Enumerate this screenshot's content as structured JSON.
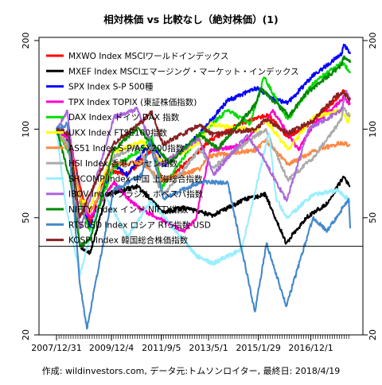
{
  "chart_data": {
    "type": "line",
    "title": "相対株価 vs 比較なし（絶対株価）(1)",
    "footer": "作成: wildinvestors.com, データ元:トムソンロイター, 最終日: 2018/4/19",
    "y_scale": "log",
    "ylim": [
      20,
      205
    ],
    "y_ticks": [
      20,
      50,
      100,
      200
    ],
    "y_tick_labels": [
      "20",
      "50",
      "100",
      "200"
    ],
    "x_range": [
      "2007-12-31",
      "2018-04-19"
    ],
    "x_ticks": [
      "2007-12-31",
      "2009-12-04",
      "2011-09-05",
      "2013-05-01",
      "2015-01-29",
      "2016-12-01"
    ],
    "x_tick_labels": [
      "2007/12/31",
      "2009/12/4",
      "2011/9/5",
      "2013/5/1",
      "2015/1/29",
      "2016/12/1"
    ],
    "reference_line": 40,
    "grid": false,
    "legend_position": "top-left",
    "series": [
      {
        "name": "MXWO Index MSCIワールドインデックス",
        "color": "#ff0000",
        "x": [
          "2007-12-31",
          "2008-06-30",
          "2008-10-31",
          "2009-03-09",
          "2009-09-30",
          "2010-06-30",
          "2011-04-30",
          "2011-10-04",
          "2012-06-30",
          "2013-05-31",
          "2014-06-30",
          "2015-05-31",
          "2016-02-11",
          "2016-11-30",
          "2017-06-30",
          "2018-01-26",
          "2018-04-19"
        ],
        "y": [
          100,
          89,
          63,
          48,
          72,
          70,
          85,
          66,
          76,
          92,
          105,
          112,
          94,
          105,
          118,
          135,
          126
        ]
      },
      {
        "name": "MXEF Index MSCIエマージング・マーケット・インデックス",
        "color": "#000000",
        "x": [
          "2007-12-31",
          "2008-05-31",
          "2008-10-27",
          "2009-03-09",
          "2009-09-30",
          "2010-04-30",
          "2010-10-31",
          "2011-10-04",
          "2012-05-31",
          "2013-06-24",
          "2014-08-31",
          "2015-04-30",
          "2016-01-21",
          "2016-09-30",
          "2017-06-30",
          "2018-01-26",
          "2018-04-19"
        ],
        "y": [
          100,
          95,
          40,
          38,
          60,
          62,
          64,
          52,
          54,
          51,
          58,
          60,
          41,
          50,
          56,
          69,
          64
        ]
      },
      {
        "name": "SPX Index S-P 500種",
        "color": "#0000ff",
        "x": [
          "2007-12-31",
          "2008-06-30",
          "2008-11-20",
          "2009-03-09",
          "2009-12-31",
          "2010-07-02",
          "2011-04-30",
          "2011-10-03",
          "2012-12-31",
          "2013-12-31",
          "2014-12-31",
          "2015-08-25",
          "2016-02-11",
          "2016-12-31",
          "2017-12-31",
          "2018-01-26",
          "2018-04-19"
        ],
        "y": [
          100,
          87,
          55,
          46,
          75,
          70,
          92,
          75,
          96,
          125,
          138,
          126,
          123,
          152,
          180,
          194,
          180
        ]
      },
      {
        "name": "TPX Index TOPIX (東証株価指数)",
        "color": "#ff00cc",
        "x": [
          "2007-12-31",
          "2008-06-30",
          "2008-10-28",
          "2009-03-10",
          "2009-12-31",
          "2010-08-31",
          "2011-03-15",
          "2012-06-04",
          "2012-11-14",
          "2013-05-22",
          "2014-06-30",
          "2015-08-10",
          "2016-06-24",
          "2016-12-31",
          "2017-12-31",
          "2018-01-23",
          "2018-04-19"
        ],
        "y": [
          100,
          92,
          56,
          50,
          66,
          56,
          52,
          45,
          49,
          85,
          88,
          115,
          85,
          103,
          125,
          130,
          121
        ]
      },
      {
        "name": "DAX Index ドイツ DAX 指数",
        "color": "#00dd00",
        "x": [
          "2007-12-31",
          "2008-06-30",
          "2008-11-21",
          "2009-03-06",
          "2009-12-31",
          "2010-12-31",
          "2011-05-02",
          "2011-09-12",
          "2012-12-31",
          "2013-12-31",
          "2014-10-15",
          "2015-04-10",
          "2016-02-11",
          "2016-12-31",
          "2017-11-03",
          "2018-01-23",
          "2018-04-19"
        ],
        "y": [
          100,
          81,
          53,
          45,
          74,
          86,
          95,
          63,
          95,
          116,
          104,
          150,
          108,
          143,
          165,
          168,
          155
        ]
      },
      {
        "name": "UKX Index FTSE100指数",
        "color": "#ffff00",
        "x": [
          "2007-12-31",
          "2008-06-30",
          "2008-10-27",
          "2009-03-03",
          "2009-12-31",
          "2010-12-31",
          "2011-09-22",
          "2012-12-31",
          "2013-05-22",
          "2014-12-31",
          "2015-04-27",
          "2016-02-11",
          "2016-12-31",
          "2017-12-31",
          "2018-03-23",
          "2018-04-19"
        ],
        "y": [
          100,
          86,
          58,
          54,
          83,
          91,
          77,
          90,
          104,
          99,
          108,
          85,
          110,
          116,
          105,
          113
        ]
      },
      {
        "name": "AS51 Index S-P/ASX200指数",
        "color": "#ff8844",
        "x": [
          "2007-12-31",
          "2008-06-30",
          "2008-11-20",
          "2009-03-06",
          "2009-12-31",
          "2010-12-31",
          "2011-08-31",
          "2012-12-31",
          "2013-04-30",
          "2014-12-31",
          "2015-04-30",
          "2016-02-11",
          "2016-12-31",
          "2017-12-31",
          "2018-04-19"
        ],
        "y": [
          100,
          83,
          56,
          52,
          76,
          77,
          67,
          73,
          81,
          85,
          92,
          76,
          84,
          90,
          88
        ]
      },
      {
        "name": "HSI Index 香港ハンセン指数",
        "color": "#aaaaaa",
        "x": [
          "2007-12-31",
          "2008-05-31",
          "2008-10-27",
          "2009-03-09",
          "2009-11-30",
          "2010-11-08",
          "2011-10-04",
          "2012-12-31",
          "2013-06-24",
          "2015-04-28",
          "2016-02-12",
          "2016-12-31",
          "2017-12-31",
          "2018-01-26",
          "2018-04-19"
        ],
        "y": [
          100,
          88,
          40,
          43,
          80,
          87,
          60,
          85,
          74,
          100,
          67,
          80,
          108,
          118,
          110
        ]
      },
      {
        "name": "SHCOMP Index 中国 上海総合指数",
        "color": "#99eeff",
        "x": [
          "2007-12-31",
          "2008-04-22",
          "2008-10-28",
          "2009-08-04",
          "2010-07-02",
          "2011-04-18",
          "2012-12-04",
          "2013-06-25",
          "2014-06-30",
          "2015-06-12",
          "2015-09-15",
          "2016-01-28",
          "2016-12-31",
          "2017-11-13",
          "2018-04-19"
        ],
        "y": [
          100,
          56,
          32,
          62,
          43,
          57,
          37,
          35,
          39,
          97,
          58,
          50,
          60,
          62,
          57
        ]
      },
      {
        "name": "IBOV Index ブラジル ボベスパ指数",
        "color": "#aa66dd",
        "x": [
          "2007-12-31",
          "2008-05-20",
          "2008-10-27",
          "2009-03-09",
          "2010-01-06",
          "2010-11-04",
          "2011-08-08",
          "2012-12-31",
          "2013-07-03",
          "2014-09-02",
          "2015-03-31",
          "2016-01-26",
          "2016-10-31",
          "2017-12-31",
          "2018-02-26",
          "2018-04-19"
        ],
        "y": [
          100,
          115,
          46,
          58,
          110,
          117,
          75,
          93,
          70,
          95,
          80,
          57,
          100,
          116,
          135,
          126
        ]
      },
      {
        "name": "NIFTY Index インド NIFTY指数",
        "color": "#008800",
        "x": [
          "2007-12-31",
          "2008-06-30",
          "2008-10-27",
          "2009-03-09",
          "2009-12-31",
          "2010-11-05",
          "2011-12-20",
          "2012-12-31",
          "2013-08-28",
          "2014-12-31",
          "2015-03-03",
          "2016-02-29",
          "2016-09-30",
          "2017-12-31",
          "2018-01-29",
          "2018-04-19"
        ],
        "y": [
          100,
          66,
          40,
          42,
          85,
          101,
          77,
          96,
          86,
          122,
          137,
          111,
          132,
          165,
          177,
          168
        ]
      },
      {
        "name": "RTSUSD Index ロシア RTS指数 USD",
        "color": "#4488cc",
        "x": [
          "2007-12-31",
          "2008-05-19",
          "2008-10-24",
          "2009-01-23",
          "2009-12-31",
          "2010-12-31",
          "2011-04-08",
          "2011-10-04",
          "2012-12-31",
          "2013-12-31",
          "2014-12-16",
          "2015-05-15",
          "2016-01-20",
          "2016-12-31",
          "2017-06-30",
          "2018-03-31",
          "2018-04-19"
        ],
        "y": [
          100,
          104,
          30,
          21,
          62,
          70,
          91,
          58,
          66,
          66,
          24,
          41,
          25,
          50,
          45,
          58,
          46
        ]
      },
      {
        "name": "KOSPI Index 韓国総合株価指数",
        "color": "#882222",
        "x": [
          "2007-12-31",
          "2008-05-31",
          "2008-10-24",
          "2009-03-02",
          "2009-12-31",
          "2010-12-31",
          "2011-04-30",
          "2011-09-26",
          "2012-12-31",
          "2013-06-25",
          "2014-12-31",
          "2015-04-30",
          "2016-02-12",
          "2016-12-31",
          "2017-11-03",
          "2018-01-29",
          "2018-04-19"
        ],
        "y": [
          100,
          97,
          50,
          60,
          89,
          106,
          115,
          89,
          103,
          96,
          100,
          108,
          97,
          107,
          131,
          133,
          126
        ]
      }
    ]
  }
}
